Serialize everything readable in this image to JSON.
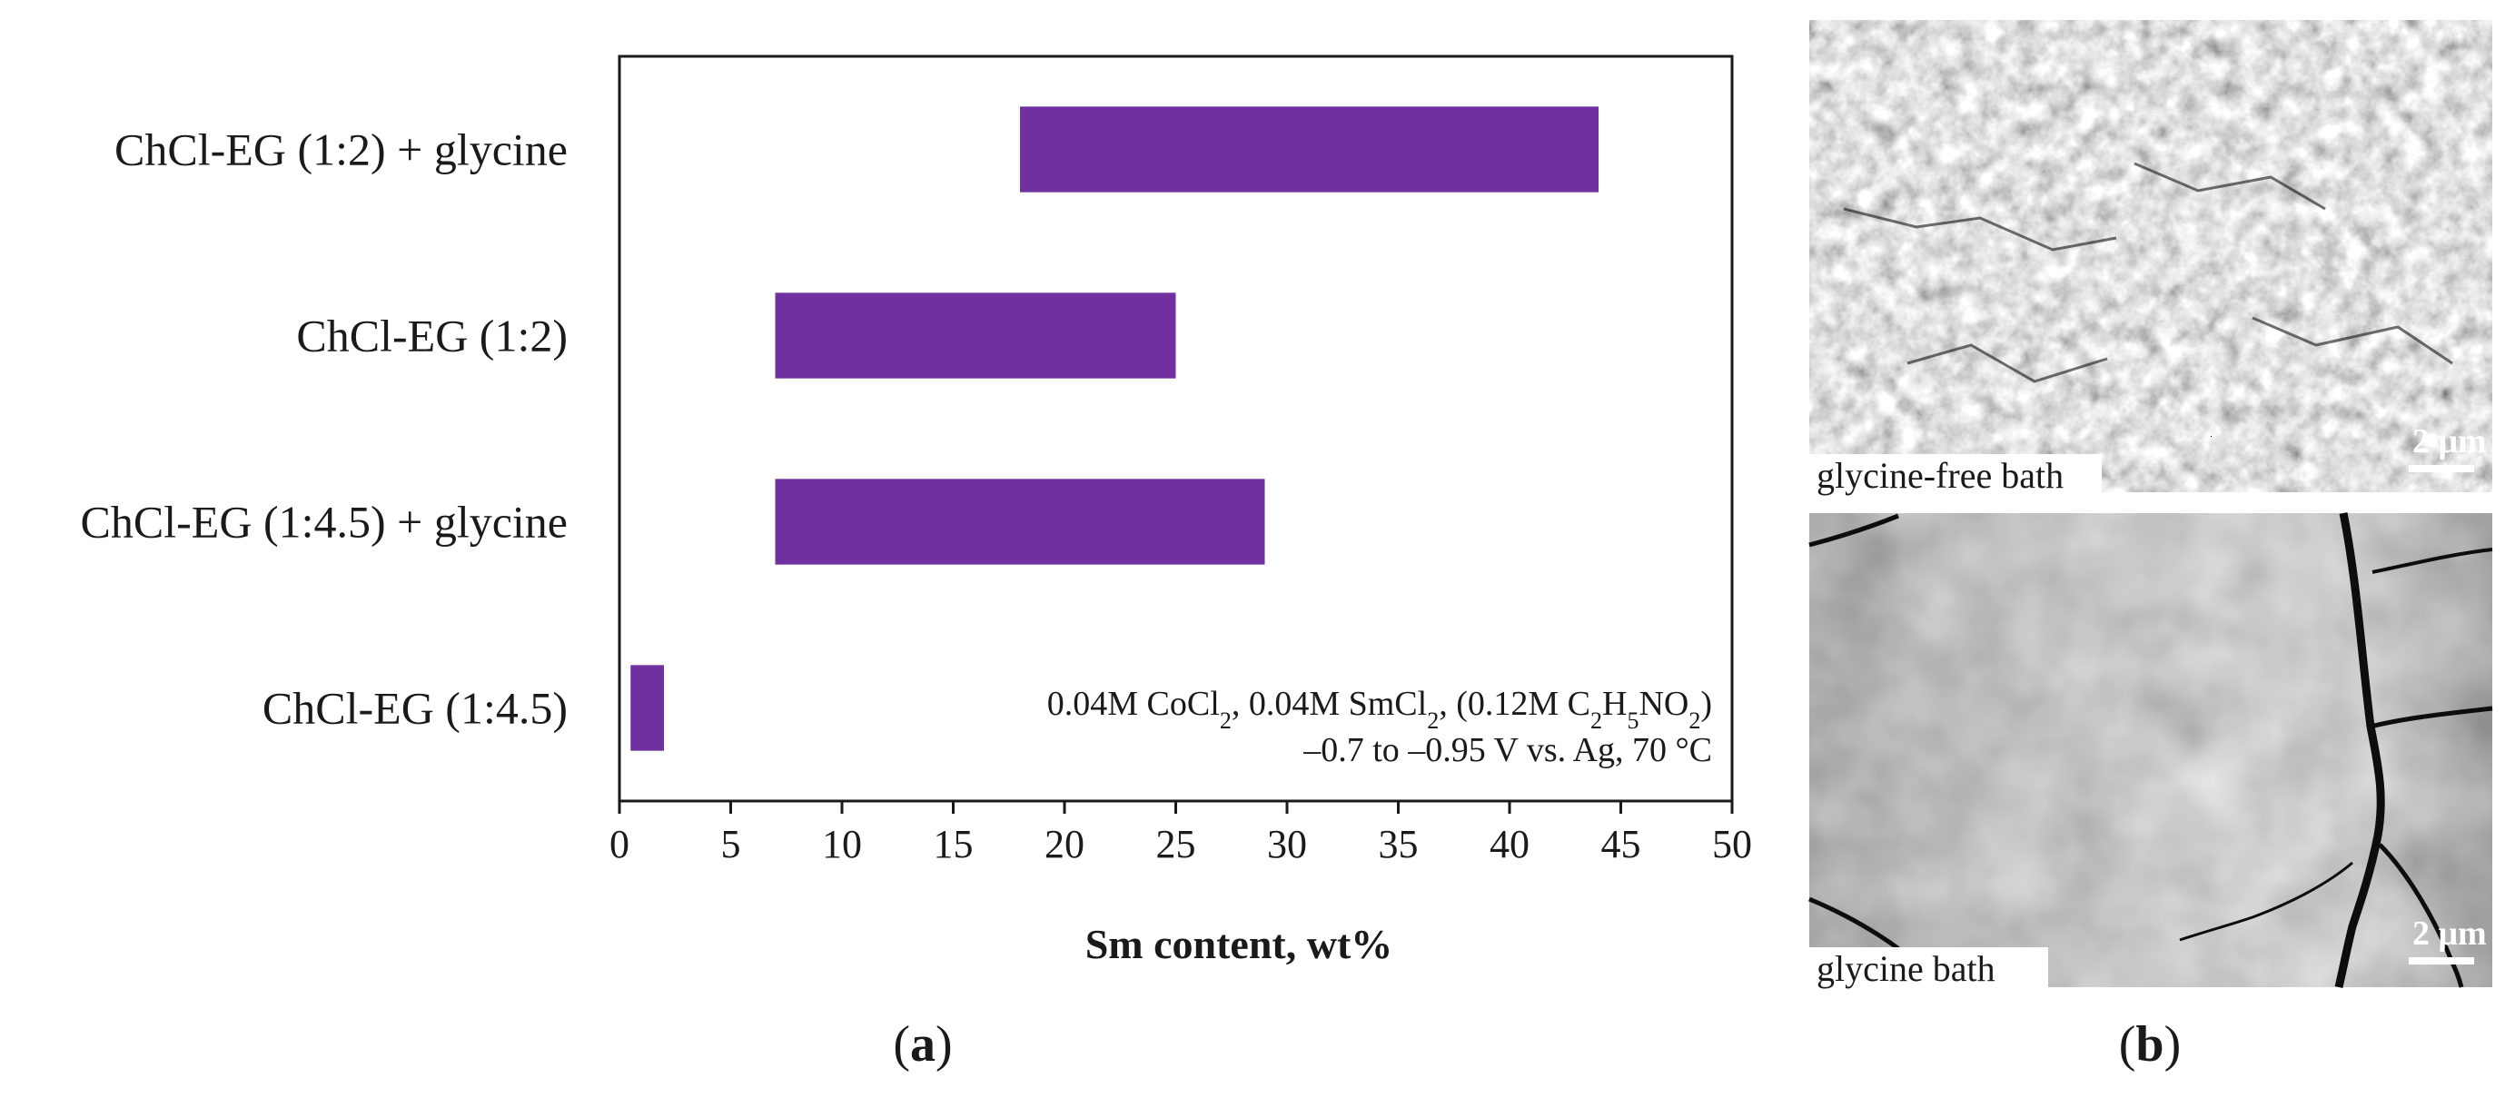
{
  "chart_data": {
    "type": "bar",
    "orientation": "horizontal",
    "floating": true,
    "categories": [
      "ChCl-EG (1:2) + glycine",
      "ChCl-EG (1:2)",
      "ChCl-EG (1:4.5) + glycine",
      "ChCl-EG (1:4.5)"
    ],
    "ranges": [
      [
        18,
        44
      ],
      [
        7,
        25
      ],
      [
        7,
        29
      ],
      [
        0.5,
        2
      ]
    ],
    "xlabel": "Sm content, wt%",
    "xlim": [
      0,
      50
    ],
    "xticks": [
      "0",
      "5",
      "10",
      "15",
      "20",
      "25",
      "30",
      "35",
      "40",
      "45",
      "50"
    ],
    "bar_color": "#7030a0",
    "grid": false,
    "annotation": {
      "line1": {
        "p1": "0.04M CoCl",
        "s1": "2",
        "p2": ", 0.04M SmCl",
        "s2": "2",
        "p3": ", (0.12M C",
        "s3": "2",
        "p4": "H",
        "s4": "5",
        "p5": "NO",
        "s5": "2",
        "p6": ")"
      },
      "line2": "–0.7 to –0.95 V vs. Ag, 70 °C"
    }
  },
  "panel_a_label": {
    "open": "(",
    "letter": "a",
    "close": ")"
  },
  "panel_b_label": {
    "open": "(",
    "letter": "b",
    "close": ")"
  },
  "micrographs": [
    {
      "caption": "glycine-free bath",
      "scale_label": "2 μm"
    },
    {
      "caption": "glycine bath",
      "scale_label": "2 μm"
    }
  ]
}
